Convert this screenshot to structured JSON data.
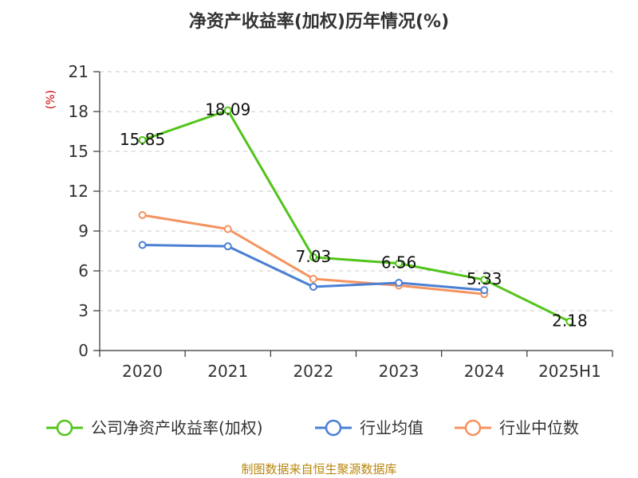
{
  "chart_data": {
    "type": "line",
    "title": "净资产收益率(加权)历年情况(%)",
    "unit_label": "(%)",
    "categories": [
      "2020",
      "2021",
      "2022",
      "2023",
      "2024",
      "2025H1"
    ],
    "ylim": [
      0,
      21
    ],
    "yticks": [
      0,
      3,
      6,
      9,
      12,
      15,
      18,
      21
    ],
    "grid": "horizontal-dashed",
    "legend_position": "bottom",
    "series": [
      {
        "name": "公司净资产收益率(加权)",
        "color": "#52c41a",
        "values": [
          15.85,
          18.09,
          7.03,
          6.56,
          5.33,
          2.18
        ],
        "labels": [
          "15.85",
          "18.09",
          "7.03",
          "6.56",
          "5.33",
          "2.18"
        ]
      },
      {
        "name": "行业均值",
        "color": "#4a7fd4",
        "values": [
          7.95,
          7.85,
          4.8,
          5.1,
          4.55,
          null
        ]
      },
      {
        "name": "行业中位数",
        "color": "#f5935f",
        "values": [
          10.2,
          9.15,
          5.4,
          4.9,
          4.25,
          null
        ]
      }
    ]
  },
  "source_text": "制图数据来自恒生聚源数据库"
}
